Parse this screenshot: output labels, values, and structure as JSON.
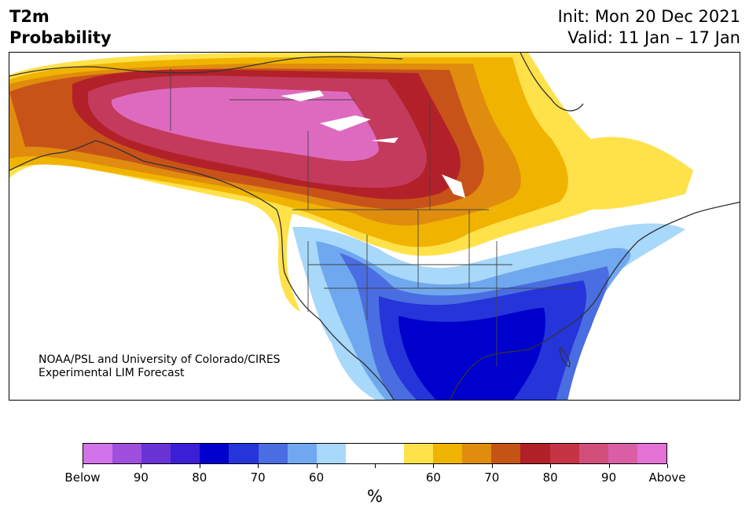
{
  "header": {
    "title_line1": "T2m",
    "title_line2": "Probability",
    "init": "Init: Mon 20 Dec 2021",
    "valid": "Valid: 11 Jan – 17 Jan"
  },
  "credit": {
    "line1": "NOAA/PSL and University of Colorado/CIRES",
    "line2": "Experimental LIM Forecast"
  },
  "colorbar": {
    "colors": [
      "#d373ea",
      "#9e4fde",
      "#6a33d6",
      "#3a1fd6",
      "#0000cc",
      "#2535d9",
      "#4a6de2",
      "#6fa8ef",
      "#a8d8fa",
      "#ffffff",
      "#ffffff",
      "#ffe14a",
      "#f0b400",
      "#e08c0e",
      "#c55414",
      "#b02026",
      "#c53345",
      "#d24e7a",
      "#da5ea6",
      "#e472d4"
    ],
    "tick_labels": [
      "Below",
      "90",
      "80",
      "70",
      "60",
      "",
      "60",
      "70",
      "80",
      "90",
      "Above"
    ],
    "unit": "%"
  },
  "map_colors": {
    "above_90": "#de6ac0",
    "above_80": "#c43a5c",
    "above_70": "#b22129",
    "above_60": "#c85318",
    "above_50": "#e08c0e",
    "warm_low": "#f0b400",
    "warm_min": "#ffe14a",
    "cold_min": "#a8d8fa",
    "cold_low": "#6fa8ef",
    "cold_mid": "#4a6de2",
    "cold_high": "#2535d9",
    "cold_max": "#0000cc",
    "land_outline": "#333333"
  }
}
